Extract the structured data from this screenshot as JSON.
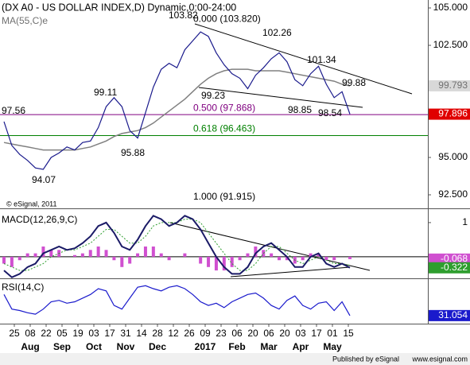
{
  "chart_data": [
    {
      "type": "price",
      "title": "(DX A0 - US DOLLAR INDEX,D) Dynamic,0:00-24:00",
      "series": [
        {
          "color": "#1a1a8c",
          "values": [
            97.4,
            95.8,
            95.2,
            94.8,
            94.3,
            94.2,
            95.0,
            95.3,
            95.7,
            95.5,
            96.0,
            96.1,
            97.0,
            98.4,
            99.0,
            98.4,
            96.8,
            96.3,
            98.0,
            99.7,
            100.9,
            101.3,
            101.0,
            102.2,
            102.8,
            103.4,
            103.1,
            102.0,
            101.2,
            100.6,
            100.3,
            99.6,
            100.5,
            101.0,
            101.6,
            102.0,
            101.4,
            100.2,
            99.8,
            100.6,
            101.1,
            99.9,
            99.0,
            99.4,
            97.9
          ]
        },
        {
          "name": "MA(55,C)e",
          "color": "#808080",
          "values": [
            96.0,
            95.9,
            95.8,
            95.7,
            95.6,
            95.5,
            95.5,
            95.5,
            95.5,
            95.5,
            95.6,
            95.7,
            95.9,
            96.1,
            96.4,
            96.6,
            96.7,
            96.8,
            97.0,
            97.3,
            97.7,
            98.1,
            98.5,
            98.9,
            99.4,
            99.9,
            100.3,
            100.6,
            100.8,
            100.9,
            100.9,
            100.9,
            100.8,
            100.8,
            100.8,
            100.8,
            100.7,
            100.6,
            100.5,
            100.4,
            100.3,
            100.2,
            100.1,
            99.9,
            99.79
          ]
        }
      ],
      "ylim": [
        91.596,
        105.532
      ],
      "yticks": [
        {
          "value": 92.5,
          "label": "92.500"
        },
        {
          "value": 95,
          "label": "95.000"
        },
        {
          "value": 102.5,
          "label": "102.500"
        },
        {
          "value": 105,
          "label": "105.000"
        }
      ],
      "last_labels": [
        {
          "value": 99.793,
          "color": "#d8d8d8",
          "text_color": "#707070"
        },
        {
          "value": 97.896,
          "color": "#e00000",
          "text_color": "#ffffff"
        }
      ],
      "fib": [
        {
          "label": "0.000 (103.820)",
          "value": 103.82,
          "color": "#000000",
          "line": false
        },
        {
          "label": "0.500 (97.868)",
          "value": 97.868,
          "color": "#800080",
          "line": true
        },
        {
          "label": "0.618 (96.463)",
          "value": 96.463,
          "color": "#008000",
          "line": true
        },
        {
          "label": "1.000 (91.915)",
          "value": 91.915,
          "color": "#000000",
          "line": false
        }
      ],
      "annotations": [
        "103.82",
        "102.26",
        "101.34",
        "99.88",
        "99.11",
        "99.23",
        "98.85",
        "98.54",
        "97.56",
        "95.88",
        "94.07"
      ],
      "copyright": "© eSignal, 2011"
    },
    {
      "type": "macd",
      "title": "MACD(12,26,9,C)",
      "series": [
        {
          "color": "#1a1a66",
          "values": [
            -0.4,
            -0.6,
            -0.5,
            -0.3,
            -0.2,
            0.1,
            0.2,
            0.3,
            0.2,
            0.25,
            0.4,
            0.6,
            0.9,
            1.0,
            0.7,
            0.3,
            0.2,
            0.5,
            0.9,
            1.2,
            1.1,
            0.9,
            1.0,
            1.2,
            1.1,
            0.8,
            0.4,
            0.0,
            -0.3,
            -0.5,
            -0.5,
            -0.3,
            0.1,
            0.3,
            0.4,
            0.2,
            0.0,
            -0.3,
            -0.3,
            0.0,
            0.1,
            -0.2,
            -0.3,
            -0.2,
            -0.322
          ]
        },
        {
          "color": "#2e9e2e",
          "values": [
            -0.2,
            -0.3,
            -0.4,
            -0.4,
            -0.3,
            -0.2,
            0.0,
            0.1,
            0.2,
            0.2,
            0.3,
            0.4,
            0.6,
            0.8,
            0.8,
            0.6,
            0.4,
            0.4,
            0.6,
            0.9,
            1.0,
            1.0,
            1.0,
            1.1,
            1.1,
            1.0,
            0.7,
            0.4,
            0.1,
            -0.2,
            -0.4,
            -0.4,
            -0.2,
            0.1,
            0.3,
            0.3,
            0.1,
            -0.1,
            -0.2,
            -0.1,
            0.0,
            -0.1,
            -0.2,
            -0.2,
            -0.254
          ]
        },
        {
          "color": "#d050d0",
          "values": [
            -0.2,
            -0.3,
            -0.1,
            0.1,
            0.1,
            0.3,
            0.2,
            0.2,
            0.0,
            0.05,
            0.1,
            0.2,
            0.3,
            0.2,
            -0.1,
            -0.3,
            -0.2,
            0.1,
            0.3,
            0.3,
            0.1,
            -0.1,
            0.0,
            0.1,
            0.0,
            -0.2,
            -0.3,
            -0.4,
            -0.4,
            -0.3,
            -0.1,
            0.1,
            0.3,
            0.2,
            0.1,
            -0.1,
            -0.1,
            -0.2,
            -0.1,
            0.1,
            0.1,
            -0.1,
            -0.1,
            0.0,
            -0.068
          ]
        }
      ],
      "ylim": [
        -0.63,
        1.37
      ],
      "yticks": [
        1
      ],
      "zero_line": 0,
      "last_labels": [
        {
          "value": -0.068,
          "color": "#d050d0",
          "text_color": "#ffffff"
        },
        {
          "value": -0.322,
          "color": "#2e9e2e",
          "text_color": "#ffffff"
        }
      ]
    },
    {
      "type": "rsi",
      "title": "RSI(14,C)",
      "series": [
        {
          "color": "#1a1acc",
          "values": [
            60,
            40,
            38,
            35,
            33,
            40,
            50,
            52,
            48,
            50,
            55,
            60,
            68,
            65,
            45,
            40,
            55,
            70,
            72,
            68,
            65,
            70,
            72,
            68,
            60,
            50,
            45,
            48,
            42,
            50,
            55,
            60,
            62,
            55,
            45,
            40,
            52,
            58,
            45,
            40,
            48,
            50,
            38,
            50,
            31.054
          ]
        }
      ],
      "ylim": [
        20,
        80
      ],
      "last_labels": [
        {
          "value": 31.054,
          "color": "#1a1acc",
          "text_color": "#ffffff"
        }
      ]
    }
  ],
  "x_axis": {
    "ticks": [
      "25",
      "08",
      "22",
      "05",
      "19",
      "03",
      "17",
      "31",
      "14",
      "28",
      "12",
      "26",
      "09",
      "23",
      "06",
      "20",
      "06",
      "20",
      "03",
      "17",
      "01",
      "15"
    ],
    "months": [
      "Aug",
      "Sep",
      "Oct",
      "Nov",
      "Dec",
      "2017",
      "Feb",
      "Mar",
      "Apr",
      "May"
    ]
  },
  "footer": {
    "left": "Published by eSignal",
    "right": "www.esignal.com"
  }
}
